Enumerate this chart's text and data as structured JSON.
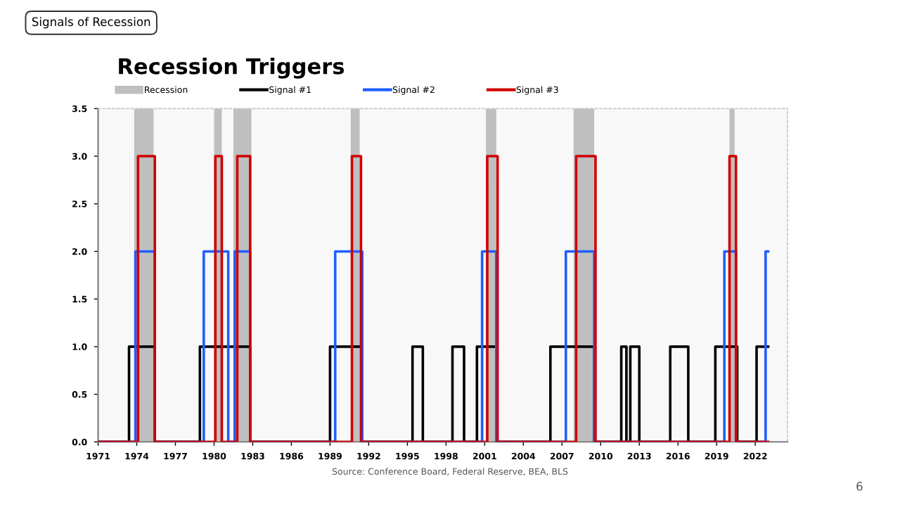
{
  "chart_data": {
    "type": "step",
    "title": "Recession Triggers",
    "annotations": [
      "Signals of Recession",
      "Source: Conference Board, Federal Reserve, BEA, BLS",
      "6"
    ],
    "xlim": [
      1971,
      2024.5
    ],
    "xticks": [
      1971,
      1974,
      1977,
      1980,
      1983,
      1986,
      1989,
      1992,
      1995,
      1998,
      2001,
      2004,
      2007,
      2010,
      2013,
      2016,
      2019,
      2022
    ],
    "ylim": [
      0,
      3.5
    ],
    "yticks": [
      {
        "value": 0,
        "label": "0.0"
      },
      {
        "value": 0.5,
        "label": "0.5"
      },
      {
        "value": 1,
        "label": "1.0"
      },
      {
        "value": 1.5,
        "label": "1.5"
      },
      {
        "value": 2,
        "label": "2.0"
      },
      {
        "value": 2.5,
        "label": "2.5"
      },
      {
        "value": 3,
        "label": "3.0"
      },
      {
        "value": 3.5,
        "label": "3.5"
      }
    ],
    "legend": "top",
    "grid": false,
    "bands": [
      {
        "axis": "x",
        "from": 1973.8,
        "to": 1975.3,
        "label": "Recession",
        "color": "#bfbfbf"
      },
      {
        "axis": "x",
        "from": 1980.0,
        "to": 1980.6,
        "color": "#bfbfbf"
      },
      {
        "axis": "x",
        "from": 1981.5,
        "to": 1982.9,
        "color": "#bfbfbf"
      },
      {
        "axis": "x",
        "from": 1990.6,
        "to": 1991.3,
        "color": "#bfbfbf"
      },
      {
        "axis": "x",
        "from": 2001.1,
        "to": 2001.9,
        "color": "#bfbfbf"
      },
      {
        "axis": "x",
        "from": 2007.9,
        "to": 2009.5,
        "color": "#bfbfbf"
      },
      {
        "axis": "x",
        "from": 2020.0,
        "to": 2020.4,
        "color": "#bfbfbf"
      }
    ],
    "series": [
      {
        "name": "Signal #1",
        "color": "#000000",
        "x": [
          1971,
          1973.4,
          1975.4,
          1978.9,
          1982.8,
          1989.0,
          1991.5,
          1995.4,
          1996.2,
          1998.5,
          1999.4,
          2000.4,
          2001.9,
          2006.1,
          2009.5,
          2011.6,
          2012.0,
          2012.3,
          2013.0,
          2015.4,
          2016.8,
          2018.9,
          2020.6,
          2022.1,
          2023.0
        ],
        "values": [
          0,
          1,
          0,
          1,
          0,
          1,
          0,
          1,
          0,
          1,
          0,
          1,
          0,
          1,
          0,
          1,
          0,
          1,
          0,
          1,
          0,
          1,
          0,
          1,
          1
        ]
      },
      {
        "name": "Signal #2",
        "color": "#1f5fff",
        "x": [
          1971,
          1973.9,
          1975.4,
          1979.2,
          1981.1,
          1981.6,
          1982.8,
          1989.4,
          1991.5,
          2000.8,
          2001.9,
          2007.3,
          2009.5,
          2019.6,
          2020.5,
          2022.8,
          2023.0
        ],
        "values": [
          0,
          2,
          0,
          2,
          0,
          2,
          0,
          2,
          0,
          2,
          0,
          2,
          0,
          2,
          0,
          2,
          2
        ]
      },
      {
        "name": "Signal #3",
        "color": "#d00000",
        "x": [
          1971,
          1974.1,
          1975.4,
          1980.1,
          1980.6,
          1981.8,
          1982.8,
          1990.7,
          1991.4,
          2001.2,
          2002.0,
          2008.1,
          2009.6,
          2020.0,
          2020.5,
          2023.0
        ],
        "values": [
          0,
          3,
          0,
          3,
          0,
          3,
          0,
          3,
          0,
          3,
          0,
          3,
          0,
          3,
          0,
          0
        ]
      }
    ]
  }
}
